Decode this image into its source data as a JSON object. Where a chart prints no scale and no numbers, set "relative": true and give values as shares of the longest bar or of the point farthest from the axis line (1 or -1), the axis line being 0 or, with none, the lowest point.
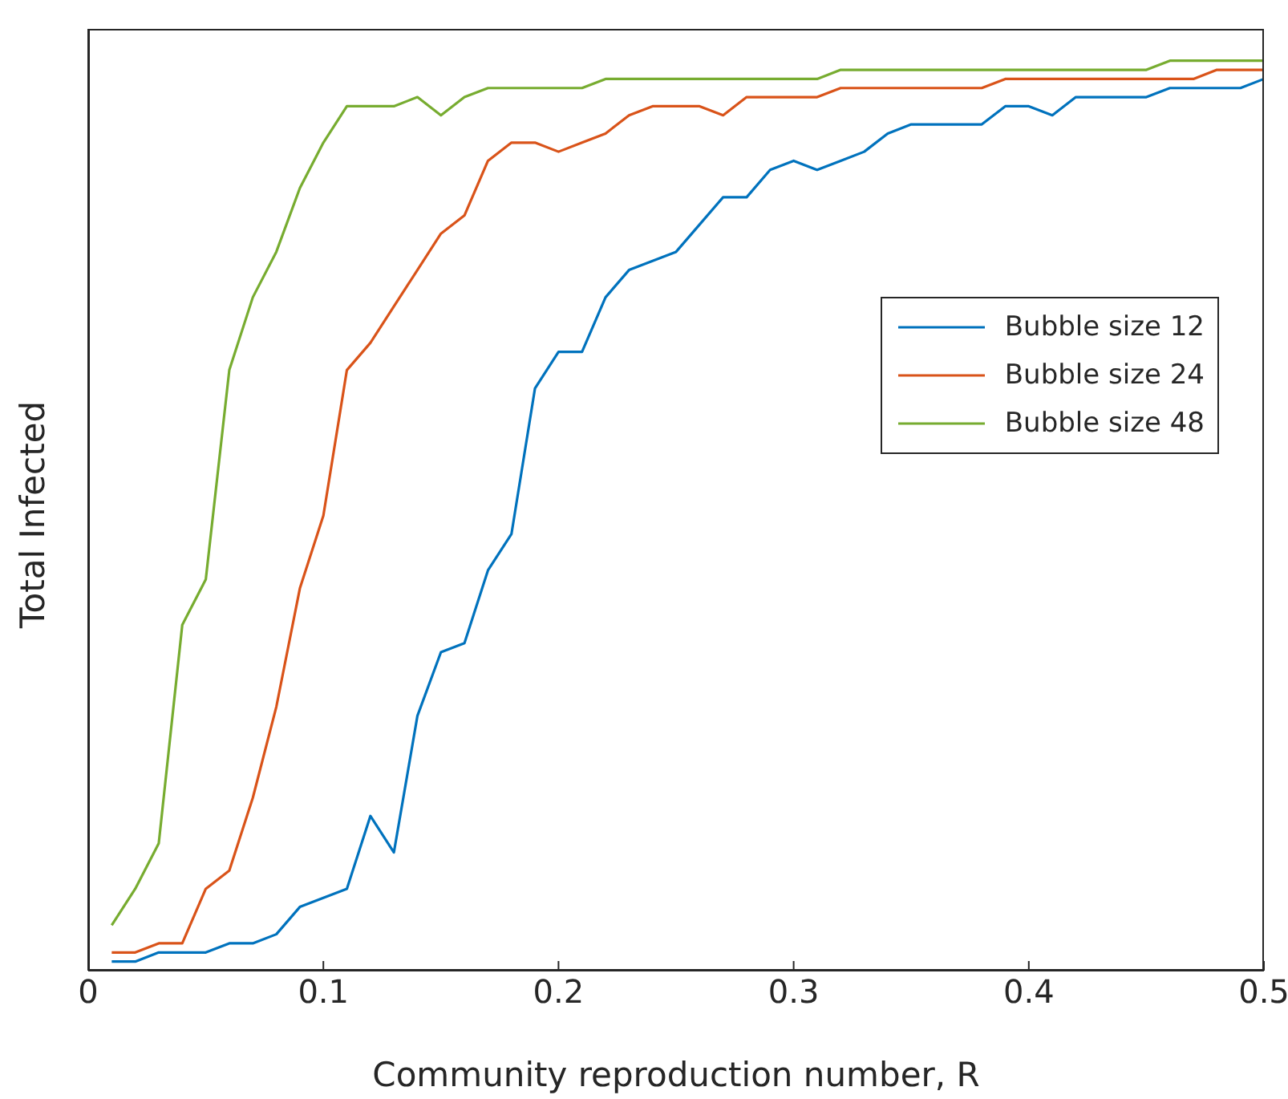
{
  "chart_data": {
    "type": "line",
    "xlabel": "Community reproduction number, R",
    "ylabel": "Total Infected",
    "relative": true,
    "x": [
      0.01,
      0.02,
      0.03,
      0.04,
      0.05,
      0.06,
      0.07,
      0.08,
      0.09,
      0.1,
      0.11,
      0.12,
      0.13,
      0.14,
      0.15,
      0.16,
      0.17,
      0.18,
      0.19,
      0.2,
      0.21,
      0.22,
      0.23,
      0.24,
      0.25,
      0.26,
      0.27,
      0.28,
      0.29,
      0.3,
      0.31,
      0.32,
      0.33,
      0.34,
      0.35,
      0.36,
      0.37,
      0.38,
      0.39,
      0.4,
      0.41,
      0.42,
      0.43,
      0.44,
      0.45,
      0.46,
      0.47,
      0.48,
      0.49,
      0.5
    ],
    "xlim": [
      0,
      0.5
    ],
    "xticks": [
      0,
      0.1,
      0.2,
      0.3,
      0.4,
      0.5
    ],
    "grid": false,
    "legend": "right",
    "marker": "none",
    "line_style": "solid",
    "series": [
      {
        "name": "Bubble size 12",
        "color": "#0072bd",
        "values": [
          0.01,
          0.01,
          0.02,
          0.02,
          0.02,
          0.03,
          0.03,
          0.04,
          0.07,
          0.08,
          0.09,
          0.17,
          0.13,
          0.28,
          0.35,
          0.36,
          0.44,
          0.48,
          0.64,
          0.68,
          0.68,
          0.74,
          0.77,
          0.78,
          0.79,
          0.82,
          0.85,
          0.85,
          0.88,
          0.89,
          0.88,
          0.89,
          0.9,
          0.92,
          0.93,
          0.93,
          0.93,
          0.93,
          0.95,
          0.95,
          0.94,
          0.96,
          0.96,
          0.96,
          0.96,
          0.97,
          0.97,
          0.97,
          0.97,
          0.98
        ]
      },
      {
        "name": "Bubble size 24",
        "color": "#d95319",
        "values": [
          0.02,
          0.02,
          0.03,
          0.03,
          0.09,
          0.11,
          0.19,
          0.29,
          0.42,
          0.5,
          0.66,
          0.69,
          0.73,
          0.77,
          0.81,
          0.83,
          0.89,
          0.91,
          0.91,
          0.9,
          0.91,
          0.92,
          0.94,
          0.95,
          0.95,
          0.95,
          0.94,
          0.96,
          0.96,
          0.96,
          0.96,
          0.97,
          0.97,
          0.97,
          0.97,
          0.97,
          0.97,
          0.97,
          0.98,
          0.98,
          0.98,
          0.98,
          0.98,
          0.98,
          0.98,
          0.98,
          0.98,
          0.99,
          0.99,
          0.99
        ]
      },
      {
        "name": "Bubble size 48",
        "color": "#77ac30",
        "values": [
          0.05,
          0.09,
          0.14,
          0.38,
          0.43,
          0.66,
          0.74,
          0.79,
          0.86,
          0.91,
          0.95,
          0.95,
          0.95,
          0.96,
          0.94,
          0.96,
          0.97,
          0.97,
          0.97,
          0.97,
          0.97,
          0.98,
          0.98,
          0.98,
          0.98,
          0.98,
          0.98,
          0.98,
          0.98,
          0.98,
          0.98,
          0.99,
          0.99,
          0.99,
          0.99,
          0.99,
          0.99,
          0.99,
          0.99,
          0.99,
          0.99,
          0.99,
          0.99,
          0.99,
          0.99,
          1.0,
          1.0,
          1.0,
          1.0,
          1.0
        ]
      }
    ]
  }
}
